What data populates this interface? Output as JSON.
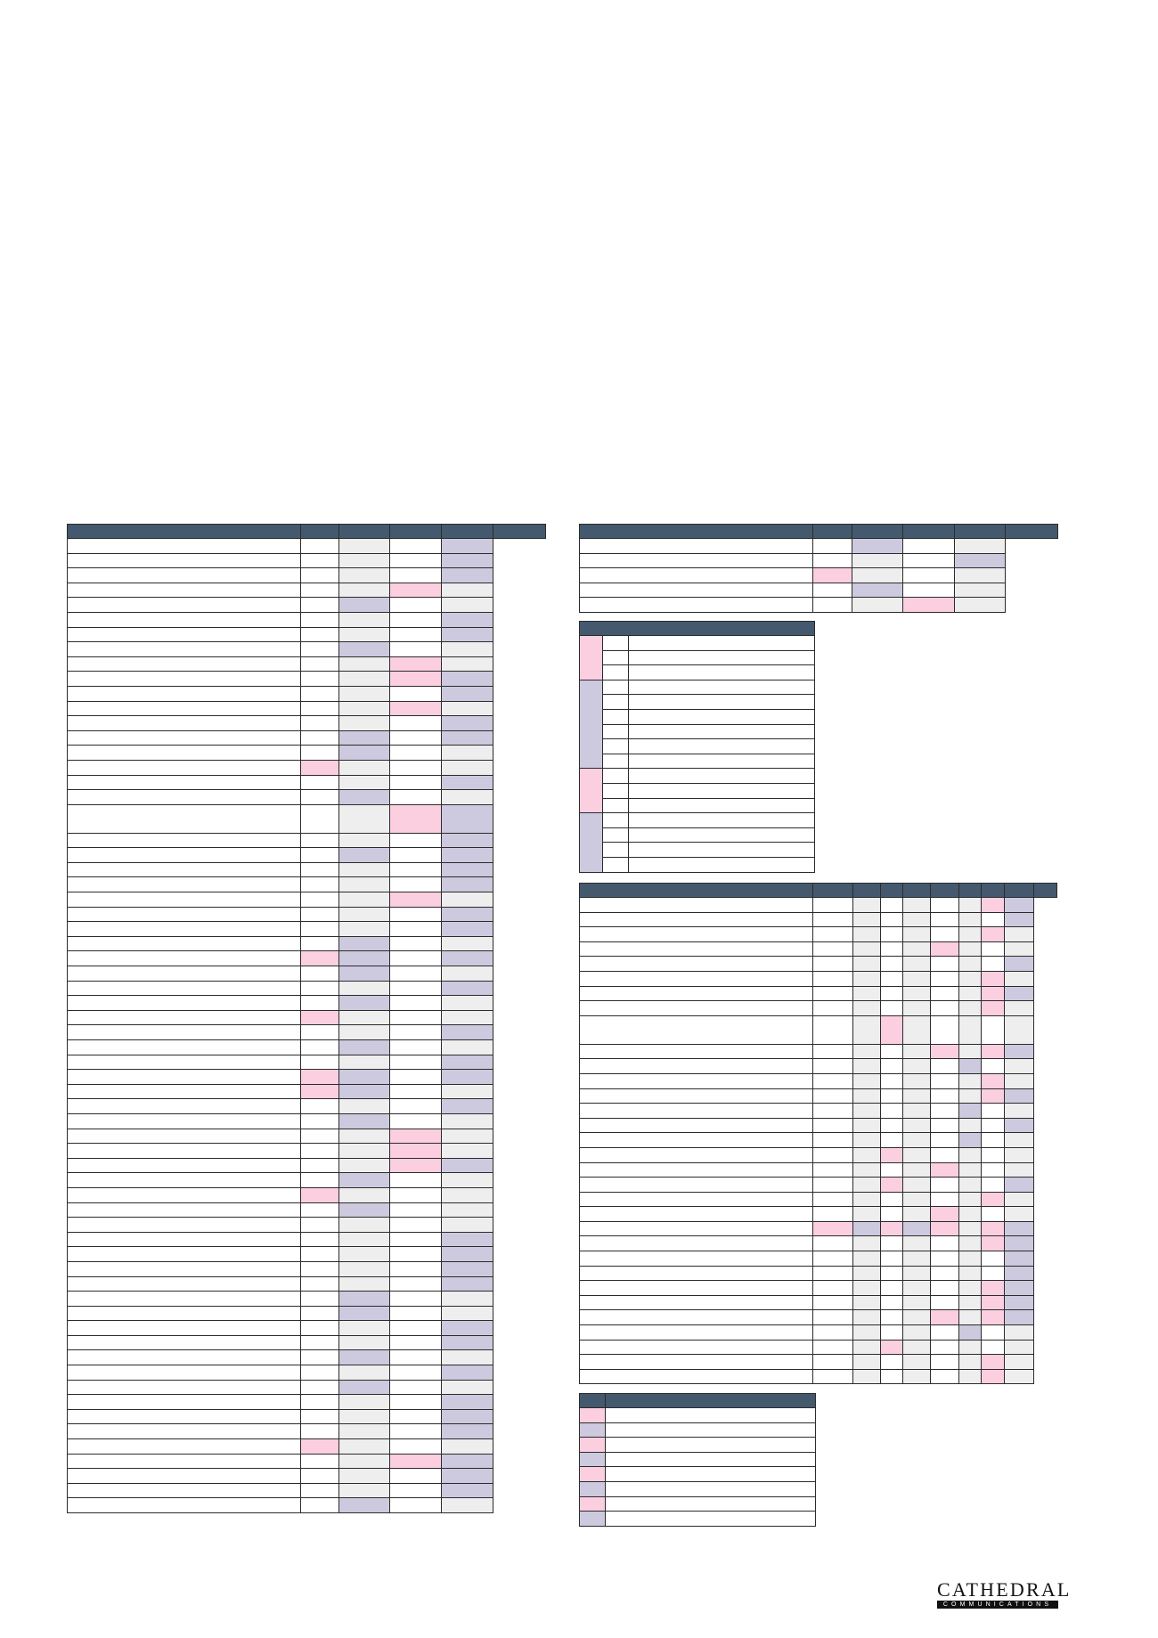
{
  "brand": {
    "name": "CATHEDRAL",
    "subtitle": "COMMUNICATIONS"
  },
  "colors": {
    "header": "#44596d",
    "pink": "#fccfe0",
    "lavender": "#cdc9de",
    "grey": "#eeeeee"
  },
  "main_table": {
    "rows": [
      "wwgwv",
      "wwgwv",
      "wwgwv",
      "wwgpg",
      "wwvwg",
      "wwgwv",
      "wwgwv",
      "wwvwg",
      "wwgpg",
      "wwgpv",
      "wwgwv",
      "wwgpg",
      "wwgwv",
      "wwvwv",
      "wwvwg",
      "wpgwg",
      "wwgwv",
      "wwvwg",
      "wwgpvT",
      "wwgwv",
      "wwvwv",
      "wwgwv",
      "wwgwv",
      "wwgpg",
      "wwgwv",
      "wwgwv",
      "wwvwg",
      "wpvwv",
      "wwvwg",
      "wwgwv",
      "wwvwg",
      "wpgwg",
      "wwgwv",
      "wwvwg",
      "wwgwv",
      "wpvwv",
      "wpvwg",
      "wwgwv",
      "wwvwg",
      "wwgpg",
      "wwgpg",
      "wwgpv",
      "wwvwg",
      "wpgwg",
      "wwvwg",
      "wwgwg",
      "wwgwv",
      "wwgwv",
      "wwgwv",
      "wwgwv",
      "wwvwg",
      "wwvwg",
      "wwgwv",
      "wwgwv",
      "wwvwg",
      "wwgwv",
      "wwvwg",
      "wwgwv",
      "wwgwv",
      "wwgwv",
      "wpgwg",
      "wwgpv",
      "wwgwv",
      "wwgwv",
      "wwvwg"
    ]
  },
  "top_right_table": {
    "rows": [
      "wwvwg",
      "wwgwv",
      "wpgwg",
      "wwvwg",
      "wwgpg"
    ]
  },
  "key_table": {
    "groups": [
      {
        "color": "p",
        "rows": 3
      },
      {
        "color": "v",
        "rows": 6
      },
      {
        "color": "p",
        "rows": 3
      },
      {
        "color": "v",
        "rows": 4
      }
    ]
  },
  "schedule_table": {
    "rows": [
      "wwgwgwgpv",
      "wwgwgwgwv",
      "wwgwgwgpg",
      "wwgwgpgwg",
      "wwgwgwgwv",
      "wwgwgwgpg",
      "wwgwgwgpv",
      "wwgwgwgpg",
      "wwgpgwgwgT",
      "wwgwgpgpv",
      "wwgwgwvwg",
      "wwgwgwgpg",
      "wwgwgwgpv",
      "wwgwgwvwg",
      "wwgwgwgwv",
      "wwgwgwvwg",
      "wwgpgwgwg",
      "wwgwgpgwg",
      "wwgpgwgwv",
      "wwgwgwgpg",
      "wwgwgpgwg",
      "wpvpvpgpv",
      "wwgwgwgpv",
      "wwgwgwgwv",
      "wwgwgwgwv",
      "wwgwgwgpv",
      "wwgwgwgpv",
      "wwgwgpgpv",
      "wwgwgwvwg",
      "wwgpgwgwg",
      "wwgwgwgpg",
      "wwgwgwgpg"
    ]
  },
  "legend_table": {
    "rows": [
      "p",
      "v",
      "p",
      "v",
      "p",
      "v",
      "p",
      "v"
    ]
  }
}
